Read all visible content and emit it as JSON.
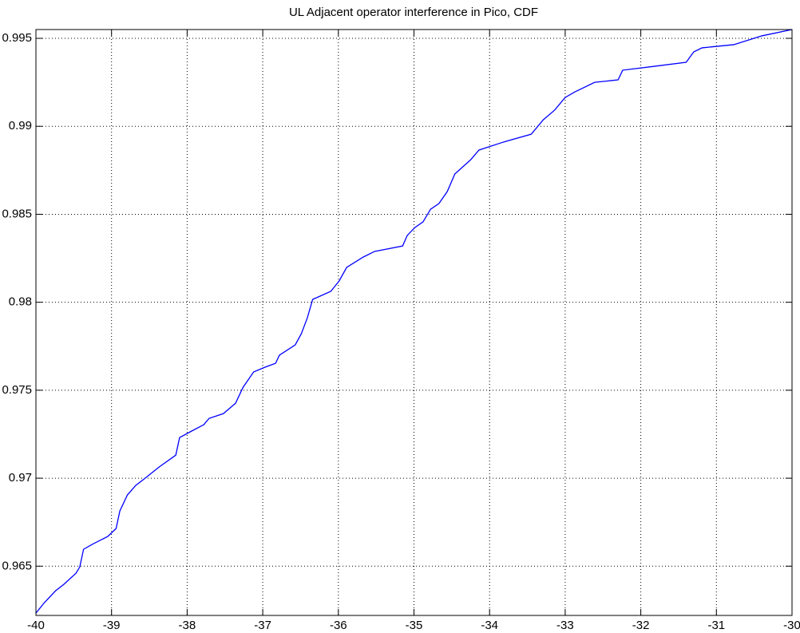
{
  "chart_data": {
    "type": "line",
    "title": "UL Adjacent operator interference in Pico, CDF",
    "x": [
      -40,
      -39.89,
      -39.74,
      -39.63,
      -39.47,
      -39.42,
      -39.37,
      -39.26,
      -39.05,
      -38.94,
      -38.89,
      -38.79,
      -38.68,
      -38.57,
      -38.37,
      -38.15,
      -38.1,
      -37.94,
      -37.78,
      -37.71,
      -37.52,
      -37.36,
      -37.26,
      -37.12,
      -36.97,
      -36.83,
      -36.78,
      -36.57,
      -36.49,
      -36.41,
      -36.34,
      -36.1,
      -35.99,
      -35.89,
      -35.67,
      -35.52,
      -35.15,
      -35.09,
      -34.99,
      -34.88,
      -34.78,
      -34.67,
      -34.56,
      -34.46,
      -34.25,
      -34.14,
      -33.82,
      -33.45,
      -33.29,
      -33.14,
      -33.0,
      -32.87,
      -32.61,
      -32.3,
      -32.24,
      -31.82,
      -31.4,
      -31.3,
      -31.19,
      -30.77,
      -30.4,
      -30
    ],
    "series": [
      {
        "name": "CDF",
        "color": "#0000ff",
        "values": [
          0.96233,
          0.96292,
          0.9636,
          0.96397,
          0.9646,
          0.96496,
          0.96596,
          0.96623,
          0.96669,
          0.96714,
          0.96814,
          0.96905,
          0.96959,
          0.96995,
          0.97064,
          0.97131,
          0.97231,
          0.97268,
          0.97304,
          0.9734,
          0.97367,
          0.97426,
          0.97517,
          0.97604,
          0.97631,
          0.97653,
          0.97699,
          0.97758,
          0.97821,
          0.97912,
          0.98016,
          0.98062,
          0.98121,
          0.98198,
          0.98257,
          0.98289,
          0.9832,
          0.98379,
          0.98424,
          0.98457,
          0.98529,
          0.98561,
          0.98629,
          0.98729,
          0.9881,
          0.98865,
          0.9891,
          0.98955,
          0.99037,
          0.99092,
          0.99164,
          0.99196,
          0.9925,
          0.99264,
          0.99319,
          0.99341,
          0.99364,
          0.99423,
          0.99446,
          0.99464,
          0.99514,
          0.9955
        ]
      }
    ],
    "xlim": [
      -40,
      -30
    ],
    "xticks": [
      -40,
      -39,
      -38,
      -37,
      -36,
      -35,
      -34,
      -33,
      -32,
      -31,
      -30
    ],
    "ylim": [
      0.9622,
      0.9955
    ],
    "yticks": [
      0.965,
      0.97,
      0.975,
      0.98,
      0.985,
      0.99,
      0.995
    ],
    "grid": true
  }
}
